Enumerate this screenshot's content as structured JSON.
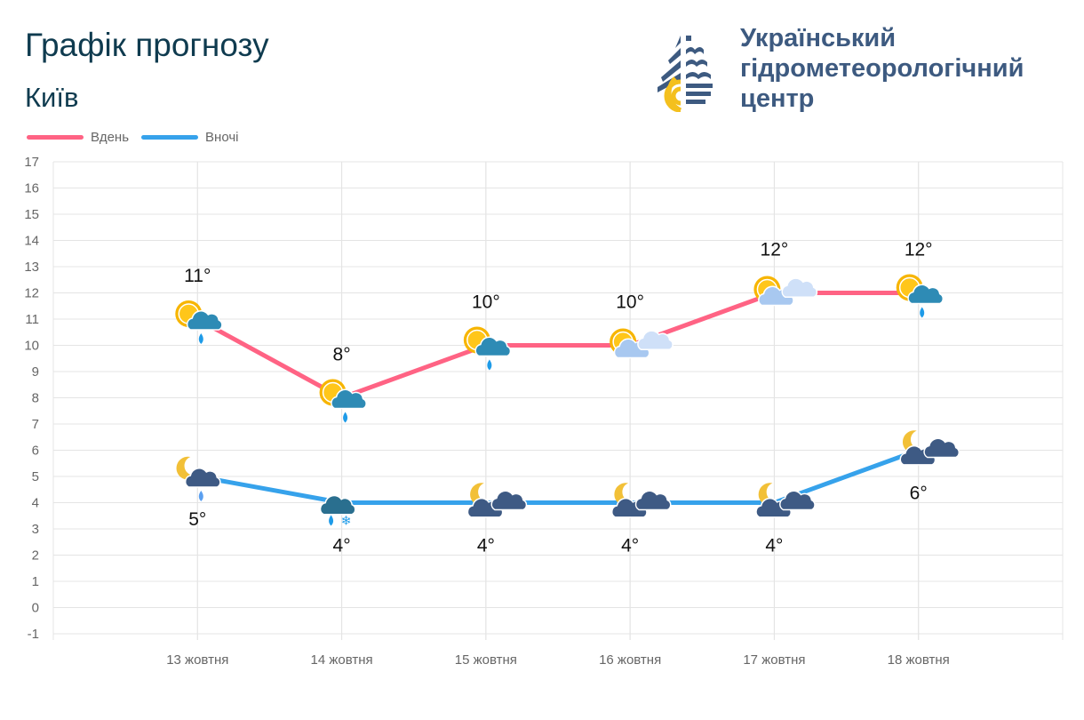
{
  "header": {
    "title": "Графік прогнозу",
    "city": "Київ"
  },
  "logo": {
    "org_lines": [
      "Український",
      "гідрометеорологічний",
      "центр"
    ],
    "colors": {
      "blue": "#3d5a80",
      "yellow": "#f4c01e"
    }
  },
  "chart_data": {
    "type": "line",
    "categories": [
      "13 жовтня",
      "14 жовтня",
      "15 жовтня",
      "16 жовтня",
      "17 жовтня",
      "18 жовтня"
    ],
    "ylim": [
      -1,
      17
    ],
    "yticks": [
      "17",
      "16",
      "15",
      "14",
      "13",
      "12",
      "11",
      "10",
      "9",
      "8",
      "7",
      "6",
      "5",
      "4",
      "3",
      "2",
      "1",
      "0",
      "-1"
    ],
    "grid": true,
    "legend_placement": "top-left",
    "series": [
      {
        "name": "Вдень",
        "color": "#ff6384",
        "values": [
          11,
          8,
          10,
          10,
          12,
          12
        ],
        "labels": [
          "11°",
          "8°",
          "10°",
          "10°",
          "12°",
          "12°"
        ],
        "icons": [
          "sun-cloud-rain",
          "sun-cloud-rain",
          "sun-cloud-rain",
          "sun-light-cloud",
          "sun-light-cloud",
          "sun-cloud-rain"
        ]
      },
      {
        "name": "Вночі",
        "color": "#36a2eb",
        "values": [
          5,
          4,
          4,
          4,
          4,
          6
        ],
        "labels": [
          "5°",
          "4°",
          "4°",
          "4°",
          "4°",
          "6°"
        ],
        "icons": [
          "moon-cloud-rain",
          "cloud-rain-snow",
          "moon-cloud",
          "moon-cloud",
          "moon-cloud",
          "moon-cloud"
        ]
      }
    ]
  }
}
